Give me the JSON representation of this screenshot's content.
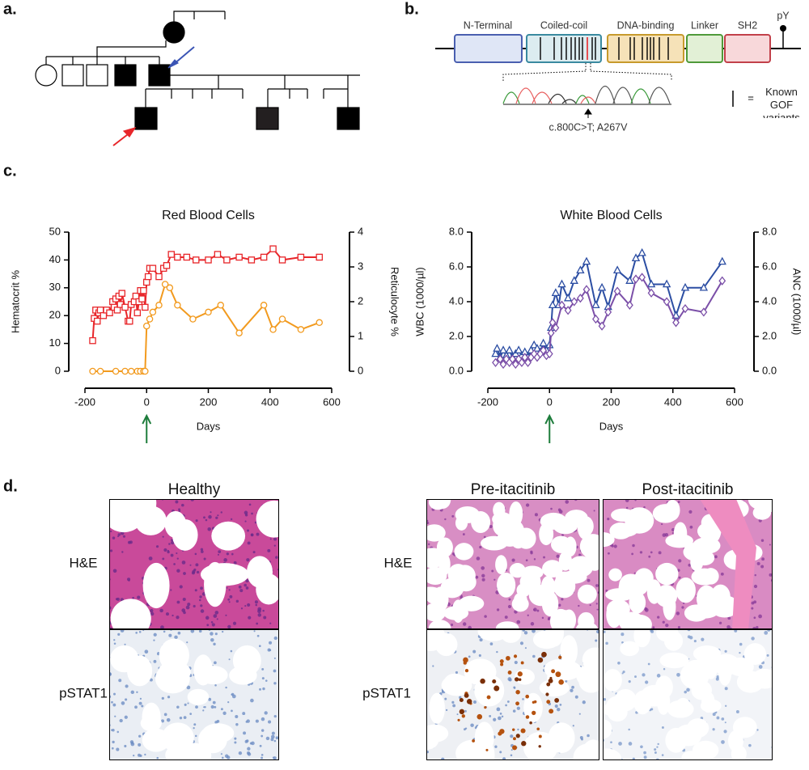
{
  "panels": {
    "a": "a.",
    "b": "b.",
    "c": "c.",
    "d": "d."
  },
  "protein": {
    "domains": [
      "N-Terminal",
      "Coiled-coil",
      "DNA-binding",
      "Linker",
      "SH2"
    ],
    "site": "pY",
    "mutation": "c.800C>T; A267V",
    "legend_symbol": "=",
    "legend_text": "Known GOF variants"
  },
  "chart_data": [
    {
      "type": "line",
      "title": "Red Blood Cells",
      "xlabel": "Days",
      "ylabel": "Hematocrit %",
      "y2label": "Reticulocyte %",
      "xlim": [
        -200,
        600
      ],
      "xticks": [
        -200,
        0,
        200,
        400,
        600
      ],
      "ylim": [
        0,
        50
      ],
      "yticks": [
        0,
        10,
        20,
        30,
        40,
        50
      ],
      "y2lim": [
        0,
        4
      ],
      "y2ticks": [
        0,
        1,
        2,
        3,
        4
      ],
      "arrow": {
        "x": 0,
        "color": "#1e7d3c"
      },
      "series": [
        {
          "name": "Hematocrit %",
          "color": "#e8262a",
          "marker": "square",
          "axis": "y",
          "x": [
            -175,
            -170,
            -165,
            -160,
            -155,
            -150,
            -140,
            -130,
            -120,
            -110,
            -105,
            -100,
            -95,
            -90,
            -85,
            -80,
            -70,
            -60,
            -55,
            -50,
            -40,
            -35,
            -30,
            -25,
            -20,
            -15,
            -10,
            -5,
            0,
            5,
            10,
            20,
            40,
            55,
            65,
            80,
            100,
            130,
            160,
            200,
            230,
            260,
            300,
            340,
            380,
            410,
            440,
            500,
            560
          ],
          "values": [
            11,
            19,
            22,
            18,
            21,
            22,
            20,
            22,
            21,
            25,
            23,
            26,
            22,
            27,
            24,
            28,
            23,
            18,
            18,
            24,
            25,
            27,
            21,
            25,
            29,
            26,
            29,
            23,
            32,
            34,
            37,
            37,
            34,
            37,
            38,
            42,
            41,
            41,
            40,
            40,
            42,
            40,
            41,
            40,
            41,
            44,
            40,
            41,
            41
          ]
        },
        {
          "name": "Reticulocyte %",
          "color": "#f29a1e",
          "marker": "circle",
          "axis": "y2",
          "x": [
            -175,
            -150,
            -100,
            -70,
            -50,
            -30,
            -20,
            -10,
            -5,
            0,
            10,
            20,
            40,
            60,
            75,
            100,
            150,
            200,
            240,
            300,
            380,
            410,
            440,
            500,
            560
          ],
          "values": [
            0,
            0,
            0,
            0,
            0,
            0,
            0,
            0,
            0,
            1.3,
            1.5,
            1.7,
            1.9,
            2.5,
            2.4,
            1.9,
            1.5,
            1.7,
            1.9,
            1.1,
            1.9,
            1.2,
            1.5,
            1.2,
            1.4
          ]
        }
      ]
    },
    {
      "type": "line",
      "title": "White Blood Cells",
      "xlabel": "Days",
      "ylabel": "WBC (1000/µl)",
      "y2label": "ANC (1000/µl)",
      "xlim": [
        -200,
        600
      ],
      "xticks": [
        -200,
        0,
        200,
        400,
        600
      ],
      "ylim": [
        0,
        8
      ],
      "yticks": [
        {
          "value": 0,
          "label": "0.0"
        },
        {
          "value": 2,
          "label": "2.0"
        },
        {
          "value": 4,
          "label": "4.0"
        },
        {
          "value": 6,
          "label": "6.0"
        },
        {
          "value": 8,
          "label": "8.0"
        }
      ],
      "y2lim": [
        0,
        8
      ],
      "y2ticks": [
        {
          "value": 0,
          "label": "0.0"
        },
        {
          "value": 2,
          "label": "2.0"
        },
        {
          "value": 4,
          "label": "4.0"
        },
        {
          "value": 6,
          "label": "6.0"
        },
        {
          "value": 8,
          "label": "8.0"
        }
      ],
      "arrow": {
        "x": 0,
        "color": "#1e7d3c"
      },
      "series": [
        {
          "name": "WBC (1000/µl)",
          "color": "#2c4ea3",
          "marker": "triangle",
          "axis": "y",
          "x": [
            -175,
            -170,
            -160,
            -150,
            -140,
            -130,
            -120,
            -110,
            -100,
            -90,
            -80,
            -70,
            -60,
            -50,
            -40,
            -30,
            -20,
            -10,
            0,
            5,
            10,
            20,
            30,
            40,
            60,
            80,
            100,
            120,
            150,
            170,
            190,
            220,
            260,
            280,
            300,
            330,
            380,
            410,
            440,
            500,
            560
          ],
          "values": [
            1.0,
            1.3,
            0.8,
            1.2,
            0.9,
            1.2,
            0.8,
            1.0,
            1.2,
            0.9,
            1.1,
            0.8,
            1.2,
            1.5,
            1.3,
            1.1,
            1.6,
            1.2,
            1.5,
            2.5,
            3.8,
            4.5,
            3.8,
            5.0,
            4.2,
            5.2,
            5.8,
            6.3,
            3.8,
            4.8,
            3.7,
            5.8,
            5.2,
            6.5,
            6.8,
            5.0,
            5.0,
            3.2,
            4.8,
            4.8,
            6.3
          ]
        },
        {
          "name": "ANC (1000/µl)",
          "color": "#7b4fa8",
          "marker": "diamond",
          "axis": "y2",
          "x": [
            -175,
            -160,
            -150,
            -140,
            -130,
            -120,
            -110,
            -100,
            -90,
            -80,
            -70,
            -60,
            -50,
            -40,
            -30,
            -20,
            -10,
            0,
            5,
            10,
            20,
            40,
            60,
            80,
            100,
            120,
            150,
            170,
            190,
            220,
            260,
            280,
            300,
            330,
            380,
            410,
            440,
            500,
            560
          ],
          "values": [
            0.5,
            0.7,
            0.4,
            0.7,
            0.5,
            0.7,
            0.4,
            0.7,
            0.5,
            0.8,
            0.5,
            0.8,
            1.0,
            0.8,
            1.0,
            1.2,
            0.9,
            1.0,
            2.2,
            2.8,
            2.5,
            3.8,
            3.5,
            4.0,
            4.2,
            4.7,
            3.0,
            2.6,
            3.4,
            4.6,
            3.8,
            5.3,
            5.4,
            4.5,
            4.0,
            2.8,
            3.6,
            3.4,
            5.2
          ]
        }
      ]
    }
  ],
  "histology": {
    "columns": [
      "Healthy",
      "Pre-itacitinib",
      "Post-itacitinib"
    ],
    "rows": [
      "H&E",
      "pSTAT1"
    ]
  }
}
